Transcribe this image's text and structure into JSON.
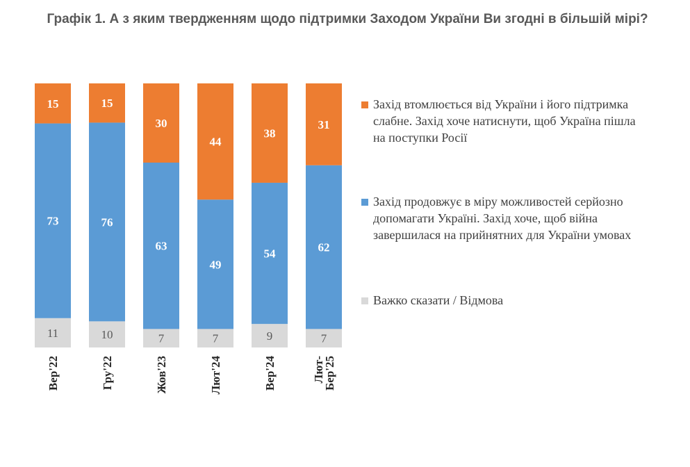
{
  "title": "Графік 1. А з яким твердженням щодо підтримки Заходом України Ви згодні в більшій мірі?",
  "colors": {
    "orange": "#ED7D31",
    "blue": "#5B9BD5",
    "gray": "#D9D9D9"
  },
  "legend": [
    {
      "label": "Захід втомлюється від України і його підтримка слабне. Захід хоче натиснути, щоб Україна пішла на поступки Росії",
      "color": "#ED7D31"
    },
    {
      "label": "Захід продовжує в міру можливостей серйозно допомагати Україні. Захід хоче, щоб війна завершилася на прийнятних для України умовах",
      "color": "#5B9BD5"
    },
    {
      "label": "Важко сказати / Відмова",
      "color": "#D9D9D9"
    }
  ],
  "chart_data": {
    "type": "bar",
    "stacked": true,
    "title": "Графік 1. А з яким твердженням щодо підтримки Заходом України Ви згодні в більшій мірі?",
    "categories": [
      "Вер'22",
      "Гру'22",
      "Жов'23",
      "Лют'24",
      "Вер'24",
      "Лют-Бер'25"
    ],
    "tick_lines": [
      [
        "Вер'22"
      ],
      [
        "Гру'22"
      ],
      [
        "Жов'23"
      ],
      [
        "Лют'24"
      ],
      [
        "Вер'24"
      ],
      [
        "Лют-",
        "Бер'25"
      ]
    ],
    "series": [
      {
        "name": "Важко сказати / Відмова",
        "values": [
          11,
          10,
          7,
          7,
          9,
          7
        ],
        "color": "#D9D9D9"
      },
      {
        "name": "Захід продовжує в міру можливостей серйозно допомагати Україні. Захід хоче, щоб війна завершилася на прийнятних для України умовах",
        "values": [
          73,
          76,
          63,
          49,
          54,
          62
        ],
        "color": "#5B9BD5"
      },
      {
        "name": "Захід втомлюється від України і його підтримка слабне. Захід хоче натиснути, щоб Україна пішла на поступки Росії",
        "values": [
          15,
          15,
          30,
          44,
          38,
          31
        ],
        "color": "#ED7D31"
      }
    ],
    "ylim": [
      0,
      100
    ],
    "grid": false,
    "legend_position": "right"
  }
}
